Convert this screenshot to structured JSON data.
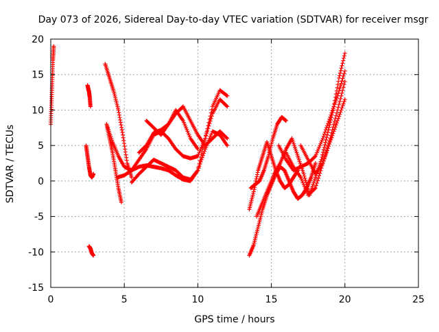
{
  "chart_data": {
    "type": "scatter",
    "title": "Day 073 of 2026, Sidereal Day-to-day VTEC variation (SDTVAR) for receiver msgr",
    "xlabel": "GPS time / hours",
    "ylabel": "SDTVAR / TECUs",
    "xlim": [
      0,
      25
    ],
    "ylim": [
      -15,
      20
    ],
    "xticks": [
      0,
      5,
      10,
      15,
      20,
      25
    ],
    "yticks": [
      -15,
      -10,
      -5,
      0,
      5,
      10,
      15,
      20
    ],
    "grid": true,
    "marker": "plus",
    "color": "#ff0000",
    "series": [
      {
        "x": [
          0.0,
          0.05,
          0.1,
          0.15,
          0.2
        ],
        "y": [
          8,
          11,
          14,
          17,
          19
        ]
      },
      {
        "x": [
          2.5,
          2.55,
          2.6,
          2.65,
          2.7
        ],
        "y": [
          13.5,
          13.0,
          12.6,
          11.8,
          10.5
        ]
      },
      {
        "x": [
          2.4,
          2.5,
          2.6,
          2.7,
          2.8,
          2.9
        ],
        "y": [
          5.0,
          3.5,
          2.0,
          0.8,
          0.5,
          1.0
        ]
      },
      {
        "x": [
          2.6,
          2.7,
          2.8,
          2.9
        ],
        "y": [
          -9.2,
          -9.5,
          -10.2,
          -10.5
        ]
      },
      {
        "x": [
          3.7,
          4.0,
          4.3,
          4.6,
          4.9,
          5.2,
          5.5
        ],
        "y": [
          16.5,
          14.5,
          12.5,
          10.0,
          6.5,
          2.5,
          0.5
        ]
      },
      {
        "x": [
          3.8,
          4.0,
          4.2,
          4.4,
          4.6,
          4.8
        ],
        "y": [
          8.0,
          6.0,
          4.0,
          1.5,
          -1.0,
          -3.0
        ]
      },
      {
        "x": [
          3.8,
          4.2,
          4.6,
          5.0,
          5.5,
          6.0,
          6.5,
          7.0,
          7.5,
          8.0,
          8.5,
          9.0,
          9.5,
          10.0,
          10.5,
          11.0,
          11.5,
          12.0
        ],
        "y": [
          8.0,
          5.5,
          3.5,
          2.0,
          1.5,
          2.0,
          2.2,
          2.0,
          1.8,
          1.5,
          0.8,
          0.2,
          0.0,
          1.5,
          6.0,
          10.5,
          12.8,
          12.0
        ]
      },
      {
        "x": [
          4.5,
          5.0,
          5.5,
          6.0,
          6.5,
          7.0,
          7.5,
          8.0,
          8.5,
          9.0,
          9.5,
          10.0,
          10.5,
          11.0,
          11.5,
          12.0
        ],
        "y": [
          0.5,
          0.8,
          1.5,
          3.0,
          4.5,
          6.5,
          7.0,
          6.0,
          4.5,
          3.5,
          3.2,
          3.5,
          6.0,
          9.5,
          11.5,
          10.5
        ]
      },
      {
        "x": [
          5.5,
          6.0,
          6.5,
          7.0,
          7.5,
          8.0,
          8.5,
          9.0,
          9.5,
          10.0,
          10.5,
          11.0,
          11.5,
          12.0
        ],
        "y": [
          -0.2,
          1.0,
          2.0,
          3.0,
          2.5,
          2.0,
          1.5,
          0.5,
          0.2,
          1.5,
          4.5,
          7.0,
          6.5,
          5.0
        ]
      },
      {
        "x": [
          6.0,
          6.5,
          7.0,
          7.5,
          8.0,
          8.5,
          9.0,
          9.5,
          10.0,
          10.5,
          11.0,
          11.5,
          12.0
        ],
        "y": [
          4.0,
          5.0,
          6.8,
          7.2,
          8.0,
          9.5,
          10.5,
          8.5,
          6.5,
          5.0,
          6.0,
          7.0,
          6.0
        ]
      },
      {
        "x": [
          6.5,
          7.0,
          7.5,
          8.0,
          8.5,
          9.0,
          9.5,
          10.0
        ],
        "y": [
          8.5,
          7.5,
          6.5,
          8.0,
          10.0,
          8.5,
          6.0,
          4.5
        ]
      },
      {
        "x": [
          13.5,
          13.8,
          14.1,
          14.4,
          14.7,
          15.0,
          15.3,
          15.6,
          15.9,
          16.2,
          16.5,
          16.8
        ],
        "y": [
          -4.0,
          -1.5,
          1.5,
          3.5,
          5.5,
          3.5,
          1.5,
          0.0,
          -1.0,
          -0.5,
          0.5,
          1.5
        ]
      },
      {
        "x": [
          13.5,
          13.8,
          14.1,
          14.4,
          14.7,
          15.0,
          15.3,
          15.6,
          15.9,
          16.2,
          16.5,
          16.8,
          17.1,
          17.4,
          17.7,
          18.0
        ],
        "y": [
          -10.5,
          -9.0,
          -6.5,
          -4.0,
          -2.0,
          -0.5,
          1.0,
          2.0,
          1.5,
          0.0,
          -1.5,
          -2.5,
          -2.0,
          -1.0,
          0.5,
          2.5
        ]
      },
      {
        "x": [
          13.6,
          13.9,
          14.2,
          14.5,
          14.8,
          15.1,
          15.4,
          15.7,
          16.0
        ],
        "y": [
          -1.0,
          -0.5,
          0.0,
          1.5,
          3.5,
          6.0,
          8.0,
          9.0,
          8.5
        ]
      },
      {
        "x": [
          14.0,
          14.4,
          14.8,
          15.2,
          15.6,
          16.0,
          16.4,
          16.8,
          17.2,
          17.6,
          18.0,
          18.4,
          18.8,
          19.2,
          19.6,
          20.0
        ],
        "y": [
          -5.0,
          -3.0,
          -1.0,
          1.0,
          2.5,
          4.5,
          6.0,
          3.5,
          1.0,
          -2.0,
          0.5,
          3.0,
          6.5,
          10.0,
          14.5,
          18.0
        ]
      },
      {
        "x": [
          15.5,
          16.0,
          16.5,
          17.0,
          17.5,
          18.0,
          18.5,
          19.0,
          19.5,
          20.0
        ],
        "y": [
          5.0,
          3.0,
          1.5,
          2.0,
          2.5,
          3.5,
          6.0,
          9.0,
          12.0,
          15.5
        ]
      },
      {
        "x": [
          16.0,
          16.5,
          17.0,
          17.5,
          18.0,
          18.5,
          19.0,
          19.5,
          20.0
        ],
        "y": [
          4.0,
          2.0,
          0.5,
          -2.0,
          -1.0,
          2.5,
          5.5,
          8.5,
          11.5
        ]
      },
      {
        "x": [
          17.0,
          17.5,
          18.0,
          18.5,
          19.0,
          19.5,
          20.0
        ],
        "y": [
          5.0,
          3.0,
          1.0,
          2.5,
          6.0,
          10.0,
          14.0
        ]
      }
    ]
  }
}
